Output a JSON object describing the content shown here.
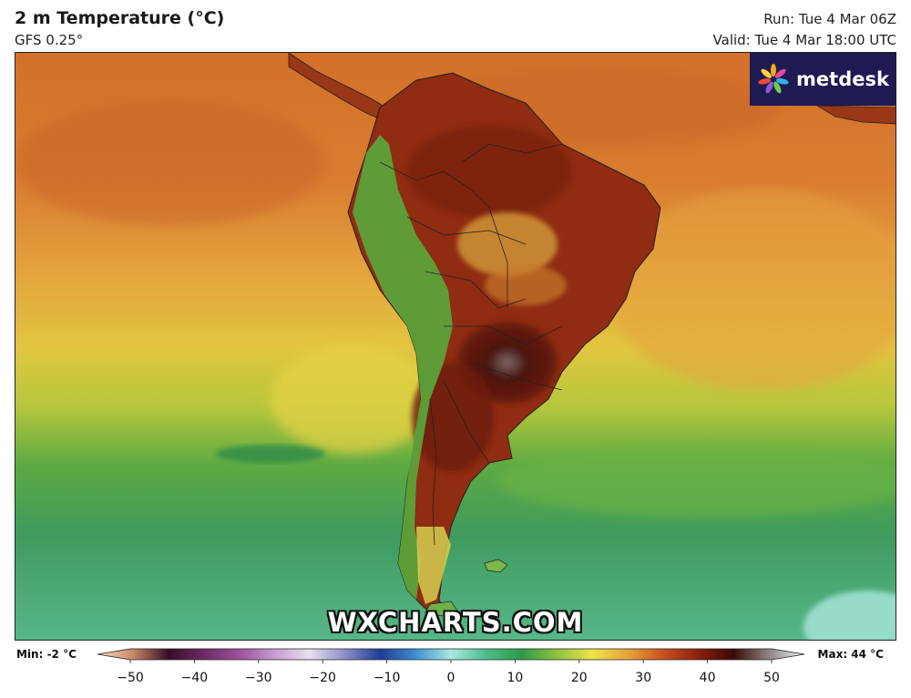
{
  "header": {
    "title": "2 m Temperature (°C)",
    "model": "GFS 0.25°",
    "run": "Run: Tue 4 Mar 06Z",
    "valid": "Valid: Tue 4 Mar 18:00 UTC"
  },
  "brand": {
    "name": "metdesk",
    "icon": "metdesk-flower-logo"
  },
  "watermark": "WXCHARTS.COM",
  "colorbar": {
    "min_label": "Min: -2 °C",
    "max_label": "Max: 44 °C",
    "range": [
      -50,
      50
    ],
    "tick_values": [
      -50,
      -40,
      -30,
      -20,
      -10,
      0,
      10,
      20,
      30,
      40,
      50
    ],
    "tick_labels": [
      "−50",
      "−40",
      "−30",
      "−20",
      "−10",
      "0",
      "10",
      "20",
      "30",
      "40",
      "50"
    ],
    "stops": [
      {
        "v": -50,
        "c": "#f6d9c2"
      },
      {
        "v": -45,
        "c": "#c98a66"
      },
      {
        "v": -40,
        "c": "#3a0c28"
      },
      {
        "v": -35,
        "c": "#6b2a66"
      },
      {
        "v": -30,
        "c": "#9b4f9b"
      },
      {
        "v": -25,
        "c": "#c79ad0"
      },
      {
        "v": -20,
        "c": "#e7e0ec"
      },
      {
        "v": -15,
        "c": "#8c8fc7"
      },
      {
        "v": -10,
        "c": "#1f3b96"
      },
      {
        "v": -5,
        "c": "#3f8fcf"
      },
      {
        "v": 0,
        "c": "#a8e8e2"
      },
      {
        "v": 5,
        "c": "#4dbb8a"
      },
      {
        "v": 10,
        "c": "#2f9a4a"
      },
      {
        "v": 15,
        "c": "#8fc23c"
      },
      {
        "v": 20,
        "c": "#ece34a"
      },
      {
        "v": 25,
        "c": "#e8a33a"
      },
      {
        "v": 30,
        "c": "#c8511e"
      },
      {
        "v": 35,
        "c": "#8a1f0c"
      },
      {
        "v": 40,
        "c": "#3a0a06"
      },
      {
        "v": 45,
        "c": "#8e8585"
      },
      {
        "v": 50,
        "c": "#f4f4f4"
      }
    ]
  },
  "map_colors": {
    "ocean_tropical": "#d4762c",
    "ocean_warm": "#e39a3c",
    "ocean_mild": "#e2c63f",
    "ocean_cool": "#6eb84a",
    "ocean_cold": "#3f9c63",
    "ocean_polar": "#6fc9a6",
    "land_hot": "#8e2a10",
    "land_very_hot": "#4b1410",
    "andes": "#5aa83d",
    "patagonia": "#c2d25a"
  }
}
